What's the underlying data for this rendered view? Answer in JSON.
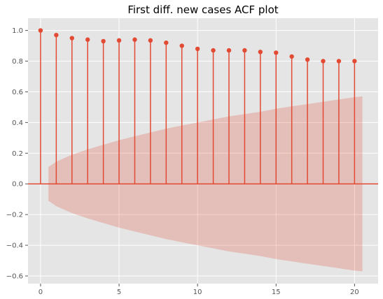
{
  "chart_data": {
    "type": "stem",
    "title": "First diff. new cases ACF plot",
    "xlabel": "",
    "ylabel": "",
    "x": [
      0,
      1,
      2,
      3,
      4,
      5,
      6,
      7,
      8,
      9,
      10,
      11,
      12,
      13,
      14,
      15,
      16,
      17,
      18,
      19,
      20
    ],
    "values": [
      1.0,
      0.97,
      0.95,
      0.94,
      0.93,
      0.935,
      0.94,
      0.935,
      0.92,
      0.9,
      0.88,
      0.87,
      0.87,
      0.87,
      0.86,
      0.855,
      0.83,
      0.81,
      0.8,
      0.8,
      0.8
    ],
    "confidence_band": {
      "x": [
        0.5,
        1,
        2,
        3,
        4,
        5,
        6,
        7,
        8,
        9,
        10,
        11,
        12,
        13,
        14,
        15,
        16,
        17,
        18,
        19,
        20,
        20.5
      ],
      "upper": [
        0.11,
        0.145,
        0.19,
        0.225,
        0.255,
        0.285,
        0.31,
        0.335,
        0.36,
        0.38,
        0.4,
        0.42,
        0.44,
        0.455,
        0.47,
        0.49,
        0.505,
        0.52,
        0.535,
        0.55,
        0.565,
        0.57
      ]
    },
    "xlim": [
      -0.8,
      21.5
    ],
    "ylim": [
      -0.65,
      1.08
    ],
    "xticks": [
      0,
      5,
      10,
      15,
      20
    ],
    "yticks": [
      -0.6,
      -0.4,
      -0.2,
      0.0,
      0.2,
      0.4,
      0.6,
      0.8,
      1.0
    ],
    "ytick_labels": [
      "−0.6",
      "−0.4",
      "−0.2",
      "0.0",
      "0.2",
      "0.4",
      "0.6",
      "0.8",
      "1.0"
    ],
    "grid": true,
    "legend": "none",
    "colors": {
      "stem": "#e24a33",
      "band": "#e24a33",
      "plot_background": "#e5e5e5",
      "grid": "#ffffff"
    }
  }
}
